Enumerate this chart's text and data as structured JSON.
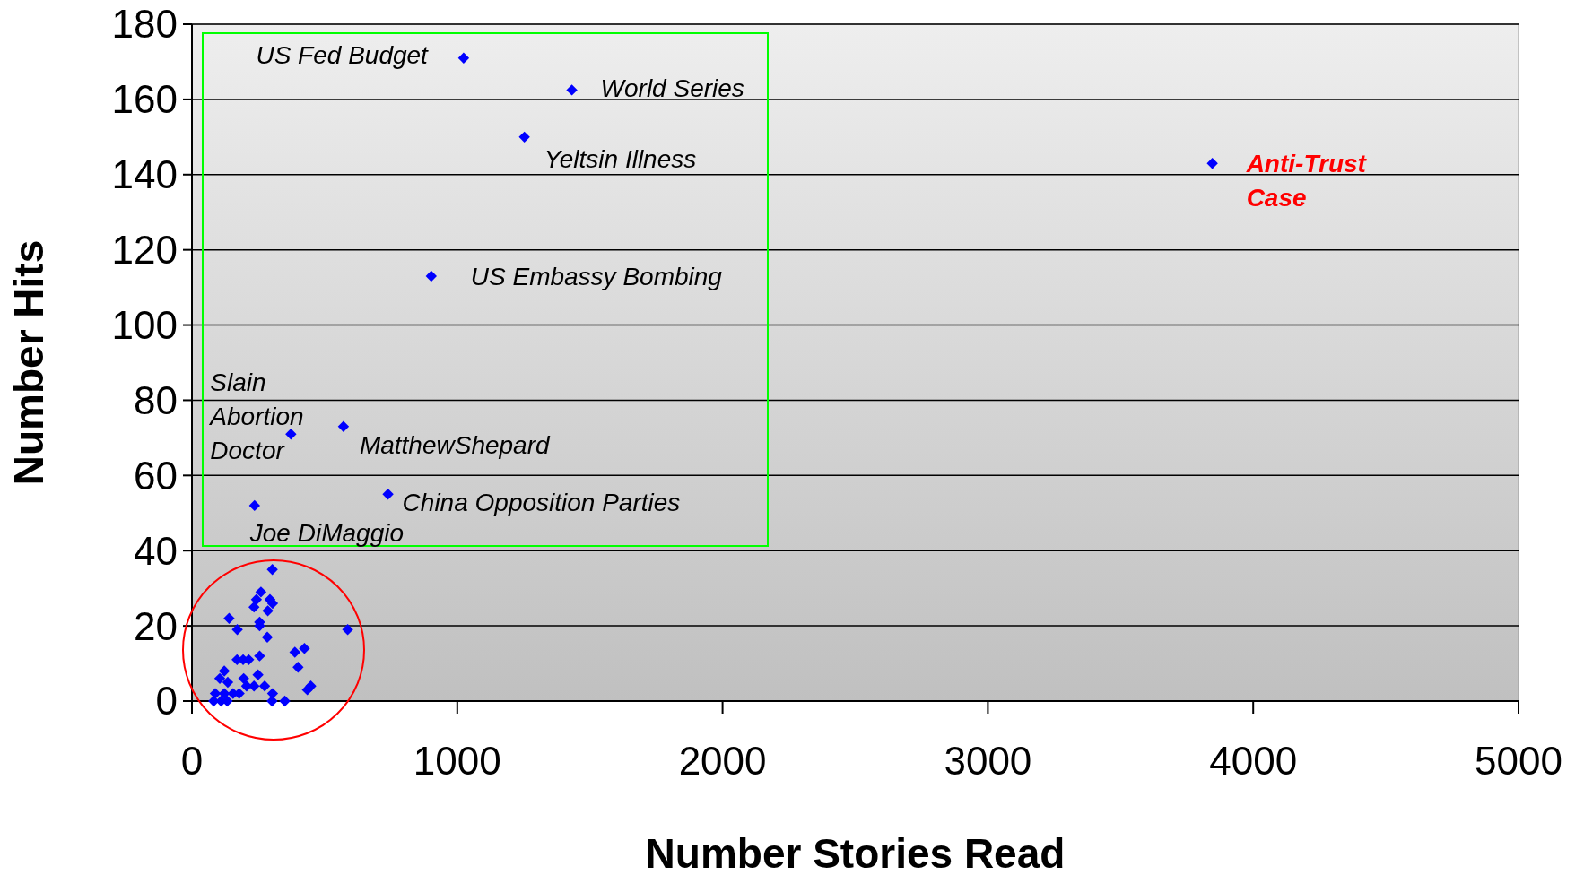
{
  "chart_data": {
    "type": "scatter",
    "xlabel": "Number Stories Read",
    "ylabel": "Number Hits",
    "xlim": [
      0,
      5000
    ],
    "xticks": [
      0,
      1000,
      2000,
      3000,
      4000,
      5000
    ],
    "ylim": [
      0,
      180
    ],
    "yticks": [
      0,
      20,
      40,
      60,
      80,
      100,
      120,
      140,
      160,
      180
    ],
    "grid": "y",
    "marker": "diamond",
    "series": [
      {
        "color": "#0000ff",
        "x": [
          1024,
          1432,
          1253,
          902,
          373,
          571,
          739,
          236,
          3846,
          303,
          260,
          243,
          294,
          304,
          234,
          286,
          140,
          255,
          255,
          171,
          587,
          284,
          424,
          388,
          255,
          170,
          193,
          214,
          400,
          122,
          249,
          195,
          105,
          135,
          234,
          274,
          448,
          435,
          206,
          304,
          88,
          122,
          155,
          178,
          82,
          110,
          133,
          302,
          350
        ],
        "values": [
          171,
          162.5,
          150,
          113,
          71,
          73,
          55,
          52,
          143,
          35,
          29,
          27,
          27,
          26,
          25,
          24,
          22,
          21,
          20,
          19,
          19,
          17,
          14,
          13,
          12,
          11,
          11,
          11,
          9,
          8,
          7,
          6,
          6,
          5,
          4,
          4,
          4,
          3,
          4,
          2,
          2,
          2,
          2,
          2,
          0,
          0,
          0,
          0,
          0
        ]
      }
    ],
    "annotations": [
      {
        "text": "US Fed Budget",
        "x": 1024,
        "y": 171
      },
      {
        "text": "World Series",
        "x": 1432,
        "y": 162.5
      },
      {
        "text": "Yeltsin Illness",
        "x": 1253,
        "y": 150
      },
      {
        "text": "US Embassy Bombing",
        "x": 902,
        "y": 113
      },
      {
        "text": "Slain Abortion Doctor",
        "x": 373,
        "y": 71
      },
      {
        "text": "MatthewShepard",
        "x": 571,
        "y": 73
      },
      {
        "text": "China Opposition Parties",
        "x": 739,
        "y": 55
      },
      {
        "text": "Joe DiMaggio",
        "x": 236,
        "y": 52
      },
      {
        "text": "Anti-Trust Case",
        "x": 3846,
        "y": 143
      }
    ]
  }
}
